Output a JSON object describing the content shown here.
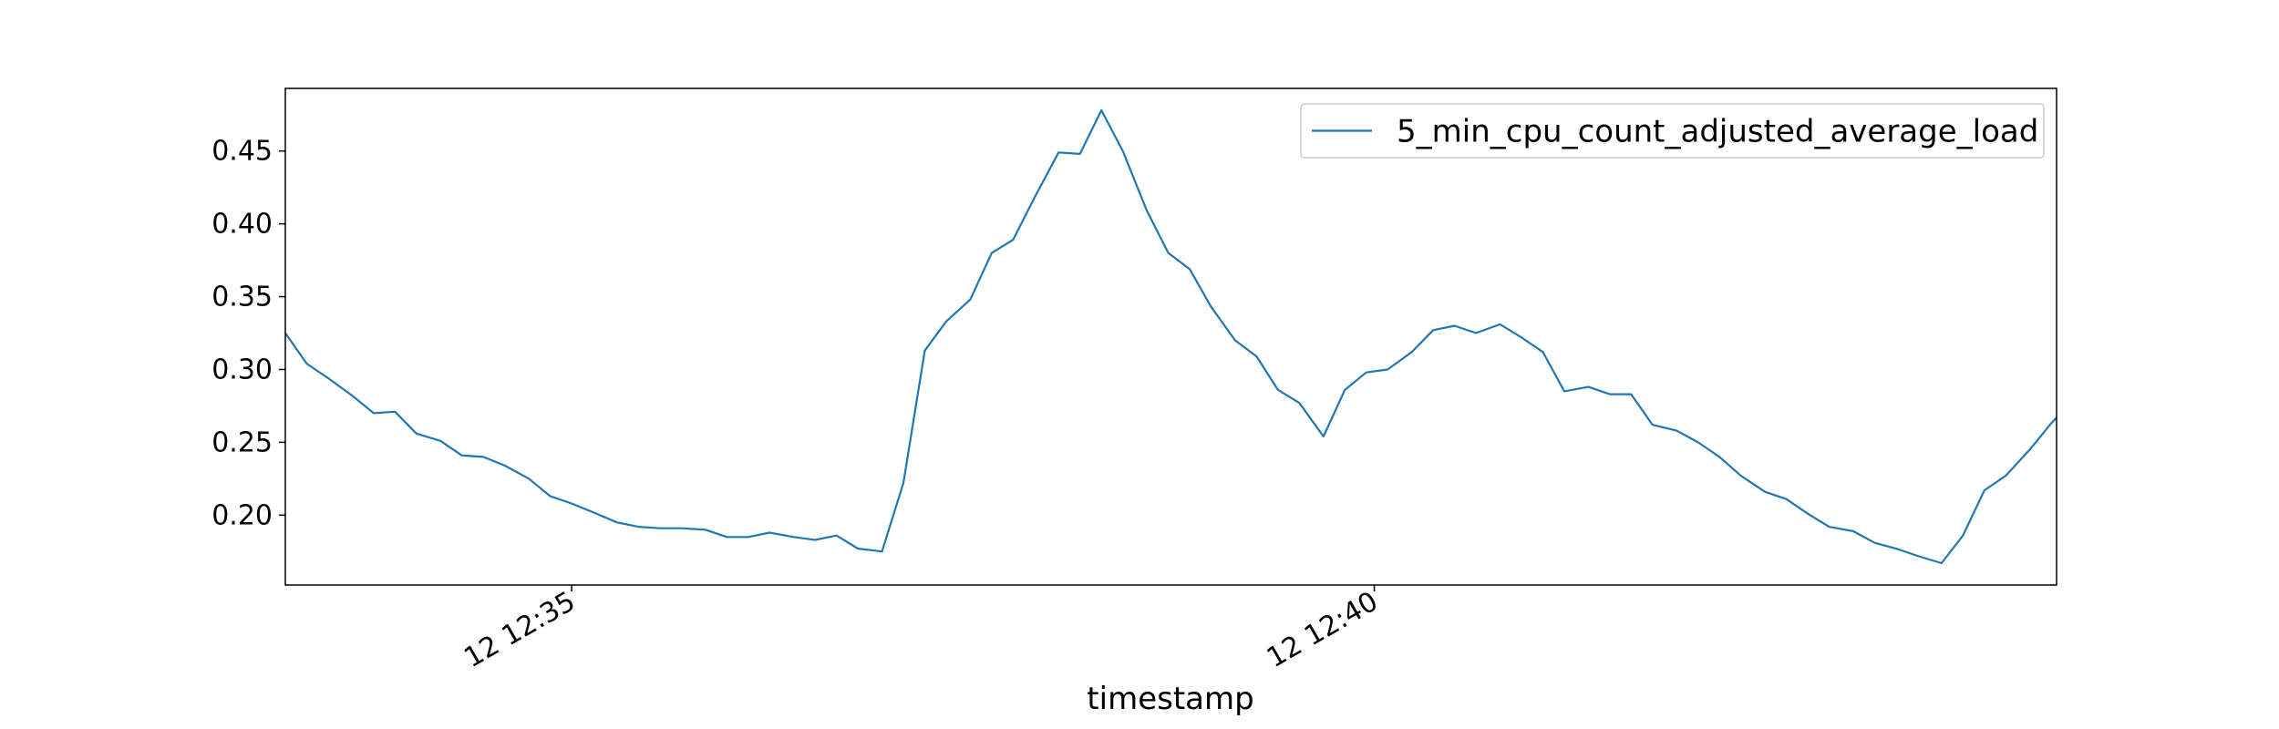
{
  "chart_data": {
    "type": "line",
    "xlabel": "timestamp",
    "ylabel": "",
    "xlim": [
      "12:33:13",
      "12:44:15"
    ],
    "ylim": [
      0.152,
      0.493
    ],
    "x_ticks": [
      {
        "value": "12:35:00",
        "label": "12 12:35"
      },
      {
        "value": "12:40:00",
        "label": "12 12:40"
      }
    ],
    "y_ticks": [
      {
        "value": 0.2,
        "label": "0.20"
      },
      {
        "value": 0.25,
        "label": "0.25"
      },
      {
        "value": 0.3,
        "label": "0.30"
      },
      {
        "value": 0.35,
        "label": "0.35"
      },
      {
        "value": 0.4,
        "label": "0.40"
      },
      {
        "value": 0.45,
        "label": "0.45"
      }
    ],
    "grid": false,
    "legend_position": "top-right",
    "series": [
      {
        "name": "5_min_cpu_count_adjusted_average_load",
        "color": "#1f77b4",
        "points": [
          [
            "12:33:13",
            0.325
          ],
          [
            "12:33:21",
            0.304
          ],
          [
            "12:33:29",
            0.294
          ],
          [
            "12:33:38",
            0.282
          ],
          [
            "12:33:46",
            0.27
          ],
          [
            "12:33:54",
            0.271
          ],
          [
            "12:34:02",
            0.256
          ],
          [
            "12:34:11",
            0.251
          ],
          [
            "12:34:19",
            0.241
          ],
          [
            "12:34:27",
            0.24
          ],
          [
            "12:34:35",
            0.234
          ],
          [
            "12:34:44",
            0.225
          ],
          [
            "12:34:52",
            0.213
          ],
          [
            "12:35:00",
            0.208
          ],
          [
            "12:35:08",
            0.202
          ],
          [
            "12:35:17",
            0.195
          ],
          [
            "12:35:25",
            0.192
          ],
          [
            "12:35:33",
            0.191
          ],
          [
            "12:35:41",
            0.191
          ],
          [
            "12:35:50",
            0.19
          ],
          [
            "12:35:58",
            0.185
          ],
          [
            "12:36:06",
            0.185
          ],
          [
            "12:36:14",
            0.188
          ],
          [
            "12:36:23",
            0.185
          ],
          [
            "12:36:31",
            0.183
          ],
          [
            "12:36:39",
            0.186
          ],
          [
            "12:36:47",
            0.177
          ],
          [
            "12:36:56",
            0.175
          ],
          [
            "12:37:04",
            0.222
          ],
          [
            "12:37:12",
            0.313
          ],
          [
            "12:37:20",
            0.333
          ],
          [
            "12:37:29",
            0.348
          ],
          [
            "12:37:37",
            0.38
          ],
          [
            "12:37:45",
            0.389
          ],
          [
            "12:37:53",
            0.418
          ],
          [
            "12:38:02",
            0.449
          ],
          [
            "12:38:10",
            0.448
          ],
          [
            "12:38:18",
            0.478
          ],
          [
            "12:38:26",
            0.45
          ],
          [
            "12:38:35",
            0.409
          ],
          [
            "12:38:43",
            0.38
          ],
          [
            "12:38:51",
            0.369
          ],
          [
            "12:38:59",
            0.343
          ],
          [
            "12:39:08",
            0.32
          ],
          [
            "12:39:16",
            0.309
          ],
          [
            "12:39:24",
            0.286
          ],
          [
            "12:39:32",
            0.277
          ],
          [
            "12:39:41",
            0.254
          ],
          [
            "12:39:49",
            0.286
          ],
          [
            "12:39:57",
            0.298
          ],
          [
            "12:40:05",
            0.3
          ],
          [
            "12:40:14",
            0.312
          ],
          [
            "12:40:22",
            0.327
          ],
          [
            "12:40:30",
            0.33
          ],
          [
            "12:40:38",
            0.325
          ],
          [
            "12:40:47",
            0.331
          ],
          [
            "12:40:55",
            0.322
          ],
          [
            "12:41:03",
            0.312
          ],
          [
            "12:41:11",
            0.285
          ],
          [
            "12:41:20",
            0.288
          ],
          [
            "12:41:28",
            0.283
          ],
          [
            "12:41:36",
            0.283
          ],
          [
            "12:41:44",
            0.262
          ],
          [
            "12:41:53",
            0.258
          ],
          [
            "12:42:01",
            0.25
          ],
          [
            "12:42:09",
            0.24
          ],
          [
            "12:42:17",
            0.227
          ],
          [
            "12:42:26",
            0.216
          ],
          [
            "12:42:34",
            0.211
          ],
          [
            "12:42:42",
            0.201
          ],
          [
            "12:42:50",
            0.192
          ],
          [
            "12:42:59",
            0.189
          ],
          [
            "12:43:07",
            0.181
          ],
          [
            "12:43:15",
            0.177
          ],
          [
            "12:43:23",
            0.172
          ],
          [
            "12:43:32",
            0.167
          ],
          [
            "12:43:40",
            0.186
          ],
          [
            "12:43:48",
            0.217
          ],
          [
            "12:43:56",
            0.227
          ],
          [
            "12:44:05",
            0.245
          ],
          [
            "12:44:13",
            0.263
          ],
          [
            "12:44:15",
            0.267
          ]
        ]
      }
    ]
  }
}
